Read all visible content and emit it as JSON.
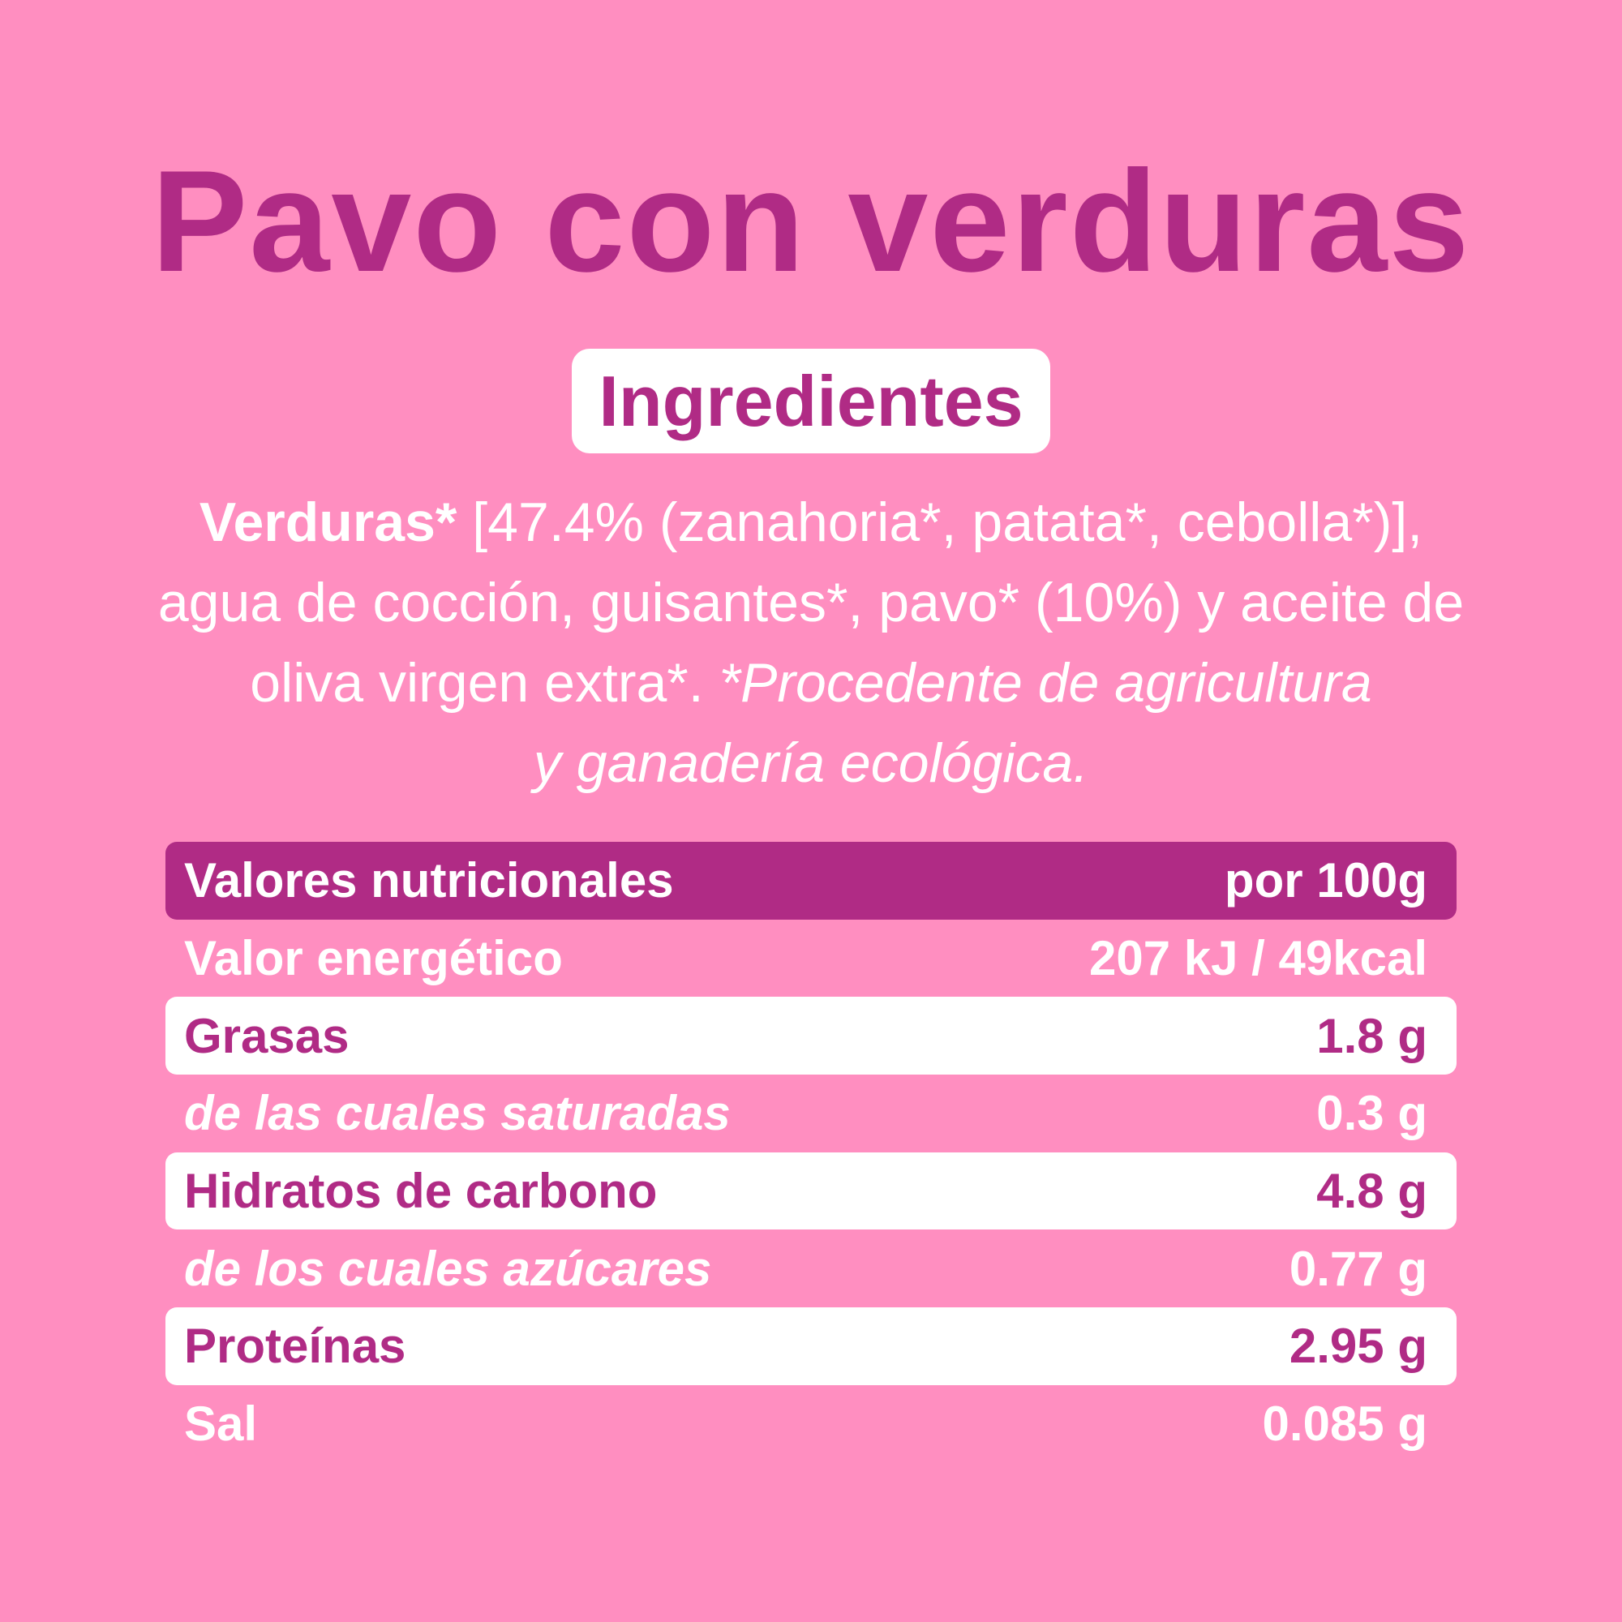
{
  "title": "Pavo con verduras",
  "ingredients": {
    "heading": "Ingredientes",
    "lines": [
      [
        "Verduras*",
        " [47.4% (zanahoria*, patata*, cebolla*)],"
      ],
      [
        "agua de cocción, guisantes*, pavo* (10%) y aceite de"
      ],
      [
        "oliva virgen extra*. ",
        "*Procedente de agricultura"
      ],
      [
        "y ganadería ecológica."
      ]
    ]
  },
  "table": {
    "header": [
      "Valores nutricionales",
      "por 100g"
    ],
    "rows": [
      [
        "Valor energético",
        "207 kJ / 49kcal"
      ],
      [
        "Grasas",
        "1.8 g"
      ],
      [
        "de las cuales saturadas",
        "0.3 g"
      ],
      [
        "Hidratos de carbono",
        "4.8 g"
      ],
      [
        "de los cuales azúcares",
        "0.77 g"
      ],
      [
        "Proteínas",
        "2.95 g"
      ],
      [
        "Sal",
        "0.085 g"
      ]
    ]
  }
}
